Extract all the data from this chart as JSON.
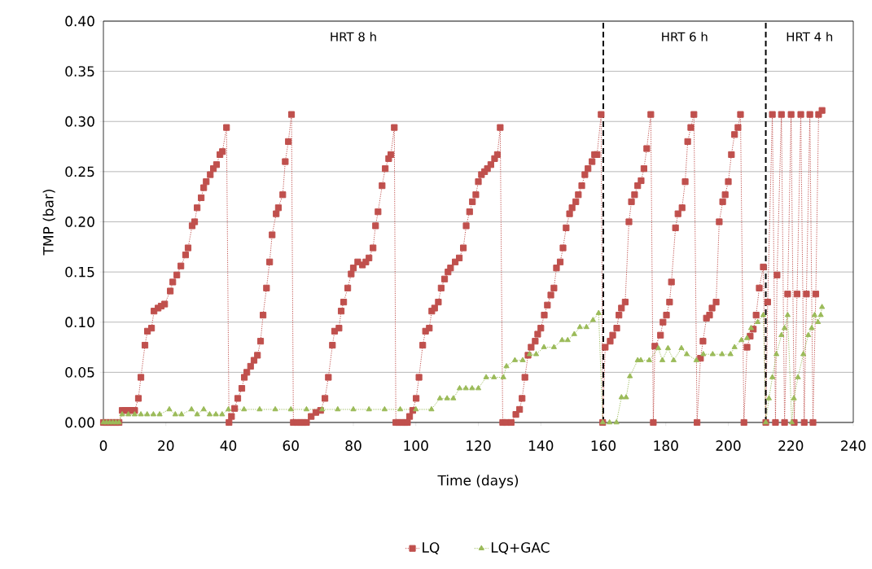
{
  "chart_data": {
    "type": "line",
    "xlabel": "Time (days)",
    "ylabel": "TMP (bar)",
    "xlim": [
      0,
      240
    ],
    "xticks": [
      0,
      20,
      40,
      60,
      80,
      100,
      120,
      140,
      160,
      180,
      200,
      220,
      240
    ],
    "ylim": [
      0,
      0.4
    ],
    "yticks": [
      {
        "value": 0,
        "label": "0.00"
      },
      {
        "value": 0.05,
        "label": "0.05"
      },
      {
        "value": 0.1,
        "label": "0.10"
      },
      {
        "value": 0.15,
        "label": "0.15"
      },
      {
        "value": 0.2,
        "label": "0.20"
      },
      {
        "value": 0.25,
        "label": "0.25"
      },
      {
        "value": 0.3,
        "label": "0.30"
      },
      {
        "value": 0.35,
        "label": "0.35"
      },
      {
        "value": 0.4,
        "label": "0.40"
      }
    ],
    "grid": "y",
    "legend": "bottom",
    "line_style": "dotted",
    "series": [
      {
        "name": "LQ",
        "color": "#c0504d",
        "marker": "square",
        "x": [
          0,
          1,
          2,
          3,
          4,
          5,
          6,
          7,
          8,
          9,
          10,
          11.2,
          12,
          13.3,
          14.1,
          15.4,
          16.2,
          17.5,
          18.5,
          19.6,
          21.4,
          22.2,
          23.5,
          24.8,
          26.3,
          27.1,
          28.4,
          29.2,
          30,
          31.3,
          32.1,
          32.9,
          34.2,
          35.2,
          36.2,
          37.3,
          38.1,
          39.4,
          40.2,
          41,
          42,
          43,
          44.3,
          45.1,
          45.9,
          47.1,
          48.2,
          49.3,
          50.3,
          51.1,
          52.2,
          53.2,
          54,
          55.3,
          56,
          57.4,
          58.2,
          59.2,
          60.2,
          60.8,
          62,
          63,
          64,
          65,
          66.5,
          68,
          69.5,
          70.9,
          72,
          73.3,
          74,
          75.4,
          76.1,
          76.9,
          78.2,
          79.3,
          80,
          81.4,
          82.9,
          84,
          85,
          86.3,
          87.1,
          87.9,
          89.2,
          90.2,
          91.3,
          92,
          93.1,
          93.6,
          94.5,
          95.5,
          96.5,
          97.3,
          98,
          99,
          100.1,
          101,
          102.2,
          103.1,
          104.3,
          105.1,
          106,
          107.2,
          108.1,
          109.2,
          110.3,
          111.1,
          112.6,
          113.9,
          115.2,
          116.1,
          117.2,
          118.1,
          119.2,
          120,
          121,
          122,
          122.9,
          124,
          125.2,
          126.1,
          127,
          127.8,
          129,
          130.5,
          132,
          133.2,
          134,
          134.9,
          135.9,
          136.9,
          138.2,
          139,
          140,
          141.1,
          142.1,
          143.2,
          144.2,
          145,
          146.2,
          147.1,
          148.1,
          149.2,
          150,
          151.2,
          152,
          153.1,
          154.1,
          155.1,
          156.4,
          157.2,
          158,
          159.3,
          159.8,
          160.6,
          162.2,
          163,
          164.3,
          165,
          165.8,
          167,
          168.2,
          169,
          170,
          171,
          172.1,
          173,
          173.9,
          175.2,
          176,
          176.5,
          178.3,
          179.1,
          180.2,
          181.2,
          181.8,
          183.1,
          183.9,
          185.2,
          186.2,
          187,
          188,
          189,
          190,
          191.1,
          191.9,
          193,
          194,
          194.8,
          196.1,
          197.1,
          198.2,
          199,
          200,
          201,
          202,
          203.1,
          203.9,
          205,
          206,
          207,
          208,
          208.9,
          209.9,
          211.2,
          212,
          212.6,
          214.1,
          215.1,
          215.6,
          217,
          218,
          219,
          220.1,
          221.1,
          222,
          223.2,
          224.3,
          225,
          226.1,
          227.1,
          228,
          228.9,
          230
        ],
        "values": [
          0,
          0,
          0,
          0,
          0,
          0,
          0.012,
          0.012,
          0.012,
          0.012,
          0.012,
          0.024,
          0.045,
          0.077,
          0.091,
          0.094,
          0.111,
          0.114,
          0.116,
          0.118,
          0.131,
          0.14,
          0.147,
          0.156,
          0.167,
          0.174,
          0.196,
          0.2,
          0.214,
          0.224,
          0.234,
          0.24,
          0.247,
          0.253,
          0.257,
          0.267,
          0.27,
          0.294,
          0,
          0.006,
          0.014,
          0.024,
          0.034,
          0.045,
          0.05,
          0.056,
          0.062,
          0.067,
          0.081,
          0.107,
          0.134,
          0.16,
          0.187,
          0.208,
          0.214,
          0.227,
          0.26,
          0.28,
          0.307,
          0,
          0,
          0,
          0,
          0,
          0.006,
          0.01,
          0.012,
          0.024,
          0.045,
          0.077,
          0.091,
          0.094,
          0.111,
          0.12,
          0.134,
          0.148,
          0.154,
          0.16,
          0.157,
          0.16,
          0.164,
          0.174,
          0.196,
          0.21,
          0.236,
          0.253,
          0.263,
          0.267,
          0.294,
          0,
          0,
          0,
          0,
          0,
          0.006,
          0.012,
          0.024,
          0.045,
          0.077,
          0.091,
          0.094,
          0.111,
          0.114,
          0.12,
          0.134,
          0.143,
          0.15,
          0.154,
          0.16,
          0.164,
          0.174,
          0.196,
          0.21,
          0.22,
          0.227,
          0.24,
          0.247,
          0.25,
          0.253,
          0.257,
          0.263,
          0.267,
          0.294,
          0,
          0,
          0,
          0.008,
          0.013,
          0.024,
          0.045,
          0.067,
          0.075,
          0.081,
          0.088,
          0.094,
          0.107,
          0.117,
          0.127,
          0.134,
          0.154,
          0.16,
          0.174,
          0.194,
          0.208,
          0.214,
          0.22,
          0.227,
          0.236,
          0.247,
          0.253,
          0.26,
          0.267,
          0.267,
          0.307,
          0,
          0.075,
          0.081,
          0.087,
          0.094,
          0.107,
          0.114,
          0.12,
          0.2,
          0.22,
          0.227,
          0.236,
          0.241,
          0.253,
          0.273,
          0.307,
          0,
          0.076,
          0.087,
          0.1,
          0.107,
          0.12,
          0.14,
          0.194,
          0.208,
          0.214,
          0.24,
          0.28,
          0.294,
          0.307,
          0,
          0.064,
          0.081,
          0.104,
          0.107,
          0.114,
          0.12,
          0.2,
          0.22,
          0.227,
          0.24,
          0.267,
          0.287,
          0.294,
          0.307,
          0,
          0.075,
          0.086,
          0.093,
          0.107,
          0.134,
          0.155,
          0,
          0.12,
          0.307,
          0,
          0.147,
          0.307,
          0,
          0.128,
          0.307,
          0,
          0.128,
          0.307,
          0,
          0.128,
          0.307,
          0,
          0.128,
          0.307,
          0.311
        ]
      },
      {
        "name": "LQ+GAC",
        "color": "#9bbb59",
        "marker": "triangle",
        "x": [
          0,
          1,
          2,
          3,
          4,
          5,
          6,
          8,
          10,
          12,
          14,
          16,
          18,
          21.1,
          23,
          25,
          28.2,
          30,
          32.1,
          34,
          36,
          38,
          40,
          45,
          50,
          55,
          60,
          65,
          70,
          75,
          80,
          85,
          90,
          95,
          100,
          105,
          107.7,
          110,
          112,
          114,
          116,
          118,
          120,
          122.5,
          125,
          128,
          129,
          131.7,
          134.2,
          136.4,
          138.5,
          141,
          144.2,
          146.8,
          148.6,
          150.7,
          152.5,
          154.6,
          156.7,
          158.5,
          159.8,
          162,
          164.2,
          165.8,
          167.3,
          168.5,
          171,
          172,
          174.7,
          177.6,
          178.9,
          180.7,
          182.5,
          185,
          186.7,
          189.8,
          192,
          195,
          198,
          200.7,
          202,
          204.2,
          206,
          207.3,
          209.4,
          211.2,
          212,
          213,
          214.1,
          215.4,
          217,
          218,
          219,
          220.3,
          221,
          222.3,
          224,
          225.6,
          226.7,
          227.6,
          228.7,
          229.6,
          230
        ],
        "values": [
          0,
          0,
          0,
          0,
          0,
          0,
          0.008,
          0.008,
          0.008,
          0.008,
          0.008,
          0.008,
          0.008,
          0.013,
          0.008,
          0.008,
          0.013,
          0.008,
          0.013,
          0.008,
          0.008,
          0.008,
          0.013,
          0.013,
          0.013,
          0.013,
          0.013,
          0.013,
          0.013,
          0.013,
          0.013,
          0.013,
          0.013,
          0.013,
          0.013,
          0.013,
          0.024,
          0.024,
          0.024,
          0.034,
          0.034,
          0.034,
          0.034,
          0.045,
          0.045,
          0.045,
          0.056,
          0.062,
          0.062,
          0.068,
          0.068,
          0.075,
          0.075,
          0.082,
          0.082,
          0.088,
          0.095,
          0.095,
          0.102,
          0.109,
          0,
          0,
          0,
          0.025,
          0.025,
          0.046,
          0.062,
          0.062,
          0.062,
          0.074,
          0.062,
          0.074,
          0.062,
          0.074,
          0.068,
          0.062,
          0.068,
          0.068,
          0.068,
          0.068,
          0.075,
          0.082,
          0.084,
          0.094,
          0.1,
          0.107,
          0,
          0.024,
          0.045,
          0.068,
          0.087,
          0.094,
          0.107,
          0,
          0.024,
          0.045,
          0.068,
          0.087,
          0.094,
          0.107,
          0.1,
          0.107,
          0.115
        ]
      }
    ],
    "ref_lines": [
      {
        "axis": "x",
        "value": 160,
        "color": "#000000",
        "line_style": "dashed"
      },
      {
        "axis": "x",
        "value": 212,
        "color": "#000000",
        "line_style": "dashed"
      }
    ],
    "annotations": [
      "HRT 8 h",
      "HRT 6 h",
      "HRT 4 h"
    ]
  }
}
